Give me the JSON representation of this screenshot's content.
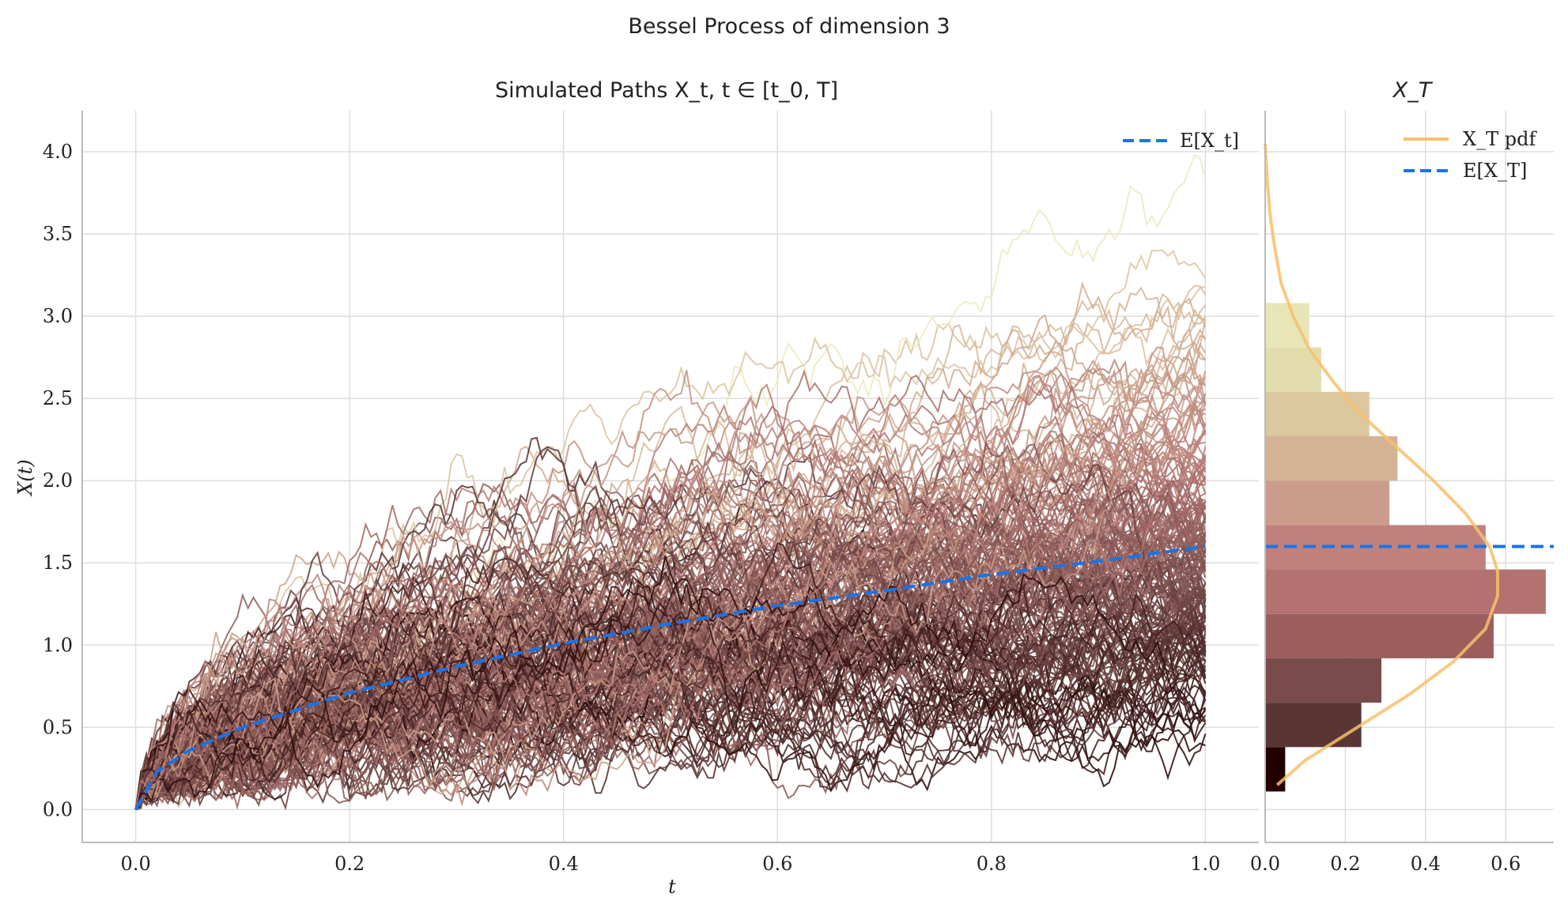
{
  "figure": {
    "suptitle": "Bessel Process of dimension 3"
  },
  "chart_data": [
    {
      "type": "line",
      "title": "Simulated Paths X_t, t ∈ [t_0, T]",
      "xlabel": "t",
      "ylabel": "X(t)",
      "xlim": [
        -0.05,
        1.05
      ],
      "ylim": [
        -0.2,
        4.25
      ],
      "xticks": [
        0.0,
        0.2,
        0.4,
        0.6,
        0.8,
        1.0
      ],
      "xtick_labels": [
        "0.0",
        "0.2",
        "0.4",
        "0.6",
        "0.8",
        "1.0"
      ],
      "yticks": [
        0.0,
        0.5,
        1.0,
        1.5,
        2.0,
        2.5,
        3.0,
        3.5,
        4.0
      ],
      "ytick_labels": [
        "0.0",
        "0.5",
        "1.0",
        "1.5",
        "2.0",
        "2.5",
        "3.0",
        "3.5",
        "4.0"
      ],
      "grid": true,
      "legend_position": "top-right",
      "legend": [
        {
          "label": "E[X_t]",
          "style": "dashed",
          "color": "#1a73e8"
        }
      ],
      "n_paths": 200,
      "n_steps": 200,
      "colormap": "pink",
      "expectation": {
        "name": "E[X_t]",
        "color": "#1a73e8",
        "x": [
          0.0,
          0.02,
          0.05,
          0.1,
          0.2,
          0.3,
          0.4,
          0.5,
          0.6,
          0.7,
          0.8,
          0.9,
          1.0
        ],
        "y": [
          0.0,
          0.23,
          0.36,
          0.5,
          0.71,
          0.87,
          1.01,
          1.13,
          1.24,
          1.33,
          1.43,
          1.51,
          1.6
        ]
      }
    },
    {
      "type": "bar",
      "orientation": "horizontal",
      "title": "X_T",
      "xlim": [
        0.0,
        0.72
      ],
      "xticks": [
        0.0,
        0.2,
        0.4,
        0.6
      ],
      "xtick_labels": [
        "0.0",
        "0.2",
        "0.4",
        "0.6"
      ],
      "grid": true,
      "legend_position": "top-right",
      "legend": [
        {
          "label": "X_T pdf",
          "style": "solid",
          "color": "#f7c06b"
        },
        {
          "label": "E[X_T]",
          "style": "dashed",
          "color": "#1a73e8"
        }
      ],
      "bins": [
        {
          "y0": 0.11,
          "y1": 0.38,
          "density": 0.05,
          "color": "#230000"
        },
        {
          "y0": 0.38,
          "y1": 0.65,
          "density": 0.24,
          "color": "#593634"
        },
        {
          "y0": 0.65,
          "y1": 0.92,
          "density": 0.29,
          "color": "#7a4b4b"
        },
        {
          "y0": 0.92,
          "y1": 1.19,
          "density": 0.57,
          "color": "#9b5e5d"
        },
        {
          "y0": 1.19,
          "y1": 1.46,
          "density": 0.7,
          "color": "#b3716f"
        },
        {
          "y0": 1.46,
          "y1": 1.73,
          "density": 0.55,
          "color": "#c0817d"
        },
        {
          "y0": 1.73,
          "y1": 2.0,
          "density": 0.31,
          "color": "#cb9b8c"
        },
        {
          "y0": 2.0,
          "y1": 2.27,
          "density": 0.33,
          "color": "#d4b294"
        },
        {
          "y0": 2.27,
          "y1": 2.54,
          "density": 0.26,
          "color": "#dcc79e"
        },
        {
          "y0": 2.54,
          "y1": 2.81,
          "density": 0.14,
          "color": "#e3dcac"
        },
        {
          "y0": 2.81,
          "y1": 3.08,
          "density": 0.11,
          "color": "#e8e6b7"
        }
      ],
      "pdf": {
        "name": "X_T pdf",
        "color": "#f7c06b",
        "y": [
          0.15,
          0.3,
          0.5,
          0.7,
          0.9,
          1.1,
          1.3,
          1.45,
          1.6,
          1.8,
          2.0,
          2.2,
          2.4,
          2.6,
          2.8,
          3.0,
          3.2,
          3.4,
          3.6,
          3.8,
          4.05
        ],
        "density": [
          0.03,
          0.1,
          0.23,
          0.36,
          0.47,
          0.55,
          0.58,
          0.58,
          0.56,
          0.5,
          0.42,
          0.33,
          0.24,
          0.17,
          0.11,
          0.07,
          0.04,
          0.025,
          0.013,
          0.006,
          0.0
        ]
      },
      "expectation_value": 1.6
    }
  ]
}
